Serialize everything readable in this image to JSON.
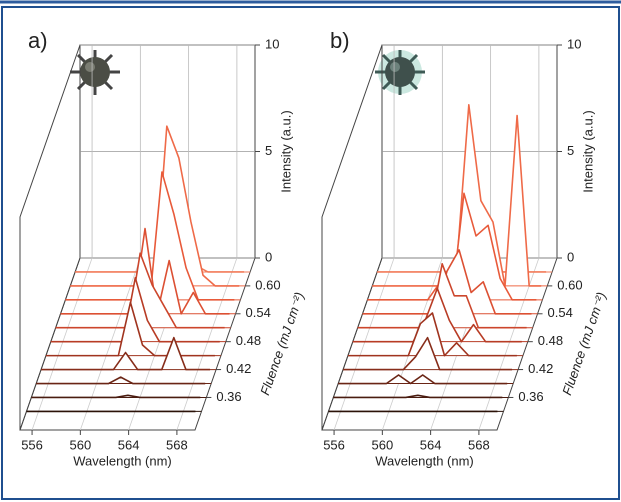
{
  "chart_data": [
    {
      "type": "waterfall",
      "panel": "a)",
      "xlabel": "Wavelength (nm)",
      "ylabel": "Intensity (a.u.)",
      "zlabel": "Fluence (mJ cm⁻²)",
      "x": [
        555,
        556,
        557,
        558,
        559,
        560,
        561,
        562,
        563,
        564,
        565,
        566,
        567,
        568,
        569
      ],
      "xlim": [
        555,
        569.5
      ],
      "xticks": [
        556,
        560,
        564,
        568
      ],
      "ylim": [
        0,
        10
      ],
      "yticks": [
        0,
        5,
        10
      ],
      "zlim": [
        0.29,
        0.66
      ],
      "zticks": [
        0.36,
        0.42,
        0.48,
        0.54,
        {
          "value": 0.6,
          "label": "0.60"
        }
      ],
      "z": [
        0.33,
        0.36,
        0.39,
        0.42,
        0.45,
        0.48,
        0.51,
        0.54,
        0.57,
        0.6,
        0.63
      ],
      "series": [
        {
          "color": "#2b1208",
          "values": [
            0,
            0,
            0,
            0,
            0,
            0,
            0,
            0,
            0,
            0,
            0,
            0,
            0,
            0,
            0
          ]
        },
        {
          "color": "#4a1c10",
          "values": [
            0,
            0,
            0,
            0,
            0,
            0,
            0,
            0,
            0.1,
            0,
            0,
            0,
            0,
            0,
            0
          ]
        },
        {
          "color": "#6a2515",
          "values": [
            0,
            0,
            0,
            0,
            0,
            0,
            0,
            0.3,
            0,
            0,
            0,
            0,
            0,
            0,
            0
          ]
        },
        {
          "color": "#872d1a",
          "values": [
            0,
            0,
            0,
            0,
            0,
            0,
            0,
            0.8,
            0,
            0,
            0,
            1.5,
            0,
            0,
            0
          ]
        },
        {
          "color": "#a0341f",
          "values": [
            0,
            0,
            0,
            0,
            0,
            0,
            0,
            2.5,
            0.5,
            0,
            0,
            0,
            0,
            0,
            0
          ]
        },
        {
          "color": "#b83c25",
          "values": [
            0,
            0,
            0,
            0,
            0,
            0,
            0,
            3,
            1,
            0,
            0,
            0,
            0,
            0,
            0
          ]
        },
        {
          "color": "#cc462c",
          "values": [
            0,
            0,
            0,
            0,
            0,
            0,
            0,
            3.5,
            2,
            1,
            0,
            0,
            0,
            0,
            0
          ]
        },
        {
          "color": "#dc5033",
          "values": [
            0,
            0,
            0,
            0,
            0,
            0,
            0,
            4,
            0,
            2.5,
            0,
            1,
            0,
            0,
            0
          ]
        },
        {
          "color": "#e85a3a",
          "values": [
            0,
            0,
            0,
            0,
            0,
            0,
            0,
            0,
            6,
            4,
            1.5,
            0,
            0,
            0,
            0
          ]
        },
        {
          "color": "#ef6a48",
          "values": [
            0,
            0,
            0,
            0,
            0,
            0,
            0,
            0,
            7.5,
            6,
            3,
            0.5,
            0,
            0,
            0
          ]
        },
        {
          "color": "#f27a58",
          "values": [
            0,
            0,
            0,
            0,
            0,
            0,
            0,
            0,
            0,
            0,
            0.3,
            0,
            0,
            0,
            0
          ]
        }
      ]
    },
    {
      "type": "waterfall",
      "panel": "b)",
      "xlabel": "Wavelength (nm)",
      "ylabel": "Intensity (a.u.)",
      "zlabel": "Fluence (mJ cm⁻²)",
      "x": [
        555,
        556,
        557,
        558,
        559,
        560,
        561,
        562,
        563,
        564,
        565,
        566,
        567,
        568,
        569
      ],
      "xlim": [
        555,
        569.5
      ],
      "xticks": [
        556,
        560,
        564,
        568
      ],
      "ylim": [
        0,
        10
      ],
      "yticks": [
        0,
        5,
        10
      ],
      "zlim": [
        0.29,
        0.66
      ],
      "zticks": [
        0.36,
        0.42,
        0.48,
        0.54,
        {
          "value": 0.6,
          "label": "0.60"
        }
      ],
      "z": [
        0.33,
        0.36,
        0.39,
        0.42,
        0.45,
        0.48,
        0.51,
        0.54,
        0.57,
        0.6,
        0.63
      ],
      "series": [
        {
          "color": "#2b1208",
          "values": [
            0,
            0,
            0,
            0,
            0,
            0,
            0,
            0,
            0,
            0,
            0,
            0,
            0,
            0,
            0
          ]
        },
        {
          "color": "#4a1c10",
          "values": [
            0,
            0,
            0,
            0,
            0,
            0,
            0,
            0.1,
            0,
            0,
            0,
            0,
            0,
            0,
            0
          ]
        },
        {
          "color": "#6a2515",
          "values": [
            0,
            0,
            0,
            0,
            0,
            0.4,
            0,
            0.4,
            0,
            0,
            0,
            0,
            0,
            0,
            0
          ]
        },
        {
          "color": "#872d1a",
          "values": [
            0,
            0,
            0,
            0,
            0,
            0,
            0.6,
            1.5,
            0,
            0,
            0,
            0,
            0,
            0,
            0
          ]
        },
        {
          "color": "#a0341f",
          "values": [
            0,
            0,
            0,
            0,
            0,
            0,
            1.5,
            2,
            0,
            0.6,
            0,
            0,
            0,
            0,
            0
          ]
        },
        {
          "color": "#b83c25",
          "values": [
            0,
            0,
            0,
            0,
            0,
            0,
            1,
            2.5,
            1,
            0,
            0.8,
            0,
            0,
            0,
            0
          ]
        },
        {
          "color": "#cc462c",
          "values": [
            0,
            0,
            0,
            0,
            0,
            0,
            0,
            3,
            1.5,
            1.5,
            0,
            0,
            0,
            0,
            0
          ]
        },
        {
          "color": "#dc5033",
          "values": [
            0,
            0,
            0,
            0,
            0,
            0,
            0,
            2,
            3,
            1,
            1.5,
            0,
            0,
            0,
            0
          ]
        },
        {
          "color": "#e85a3a",
          "values": [
            0,
            0,
            0,
            0,
            0,
            0,
            0.8,
            0,
            5,
            3,
            3.5,
            1,
            0,
            0,
            0
          ]
        },
        {
          "color": "#ef6a48",
          "values": [
            0,
            0,
            0,
            0,
            0,
            0,
            0,
            1,
            8.5,
            4,
            3,
            0,
            8,
            0,
            0
          ]
        },
        {
          "color": "#f27a58",
          "values": [
            0,
            0,
            0,
            0,
            0,
            0,
            0,
            0.8,
            0.5,
            0,
            0,
            0,
            0,
            0,
            0
          ]
        }
      ]
    }
  ]
}
